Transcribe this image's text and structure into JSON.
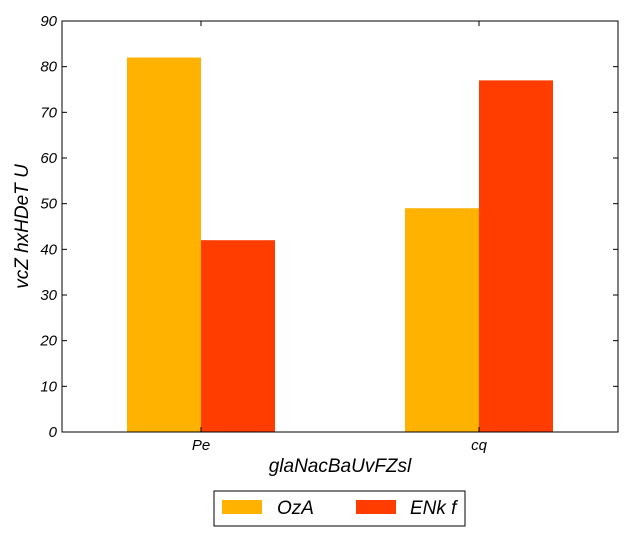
{
  "chart_data": {
    "type": "bar",
    "title": "",
    "xlabel": "glaNacBaUvFZsl",
    "ylabel": "vcZ  hxHDeT  U",
    "categories": [
      "Pe",
      "cq"
    ],
    "series": [
      {
        "name": "OzA",
        "values": [
          82,
          49
        ],
        "color": "#ffb300"
      },
      {
        "name": "ENk f",
        "values": [
          42,
          77
        ],
        "color": "#ff3d00"
      }
    ],
    "ylim": [
      0,
      90
    ],
    "yticks": [
      0,
      10,
      20,
      30,
      40,
      50,
      60,
      70,
      80,
      90
    ],
    "grid": false,
    "legend_position": "bottom-center"
  }
}
